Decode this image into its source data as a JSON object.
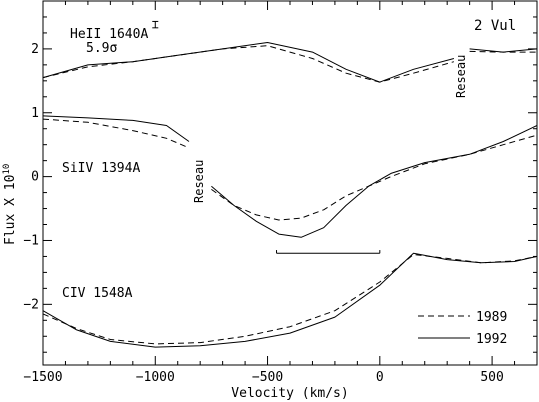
{
  "chart_data": {
    "type": "line",
    "corner_label": "2 Vul",
    "xlabel": "Velocity (km/s)",
    "ylabel_main": "Flux X 10",
    "ylabel_exp": "10",
    "xlim": [
      -1500,
      700
    ],
    "ylim": [
      -2.95,
      2.75
    ],
    "x_ticks": [
      {
        "value": -1500,
        "label": "−1500"
      },
      {
        "value": -1000,
        "label": "−1000"
      },
      {
        "value": -500,
        "label": "−500"
      },
      {
        "value": 0,
        "label": "0"
      },
      {
        "value": 500,
        "label": "500"
      }
    ],
    "y_ticks": [
      {
        "value": 2,
        "label": "2"
      },
      {
        "value": 1,
        "label": "1"
      },
      {
        "value": 0,
        "label": "0"
      },
      {
        "value": -1,
        "label": "−1"
      },
      {
        "value": -2,
        "label": "−2"
      }
    ],
    "legend": [
      {
        "name": "1989",
        "style": "dashed"
      },
      {
        "name": "1992",
        "style": "solid"
      }
    ],
    "annotations": {
      "heii_label": "HeII 1640A",
      "significance": "5.9σ",
      "siiv_label": "SiIV 1394A",
      "civ_label": "CIV 1548A",
      "reseau_1": "Reseau",
      "reseau_2": "Reseau"
    },
    "error_bar": {
      "x": -1000,
      "y": 2.38,
      "half_height": 0.05
    },
    "velocity_bracket": {
      "x_start": -460,
      "x_end": 0,
      "y": -1.2,
      "tick": 0.05
    },
    "panels": [
      {
        "ion": "HeII 1640A",
        "segments": [
          {
            "x": [
              -1500,
              -1300,
              -1100,
              -900,
              -700,
              -500,
              -300,
              -150,
              0,
              150,
              330
            ],
            "series": [
              {
                "name": "1989",
                "style": "dashed",
                "values": [
                  1.55,
                  1.72,
                  1.8,
                  1.9,
                  2.0,
                  2.05,
                  1.85,
                  1.62,
                  1.48,
                  1.62,
                  1.8
                ]
              },
              {
                "name": "1992",
                "style": "solid",
                "values": [
                  1.55,
                  1.75,
                  1.8,
                  1.9,
                  2.0,
                  2.1,
                  1.95,
                  1.68,
                  1.48,
                  1.68,
                  1.85
                ]
              }
            ]
          },
          {
            "x": [
              400,
              550,
              700
            ],
            "series": [
              {
                "name": "1989",
                "style": "dashed",
                "values": [
                  1.96,
                  1.95,
                  1.95
                ]
              },
              {
                "name": "1992",
                "style": "solid",
                "values": [
                  2.0,
                  1.95,
                  2.0
                ]
              }
            ]
          }
        ]
      },
      {
        "ion": "SiIV 1394A",
        "segments": [
          {
            "x": [
              -1500,
              -1300,
              -1100,
              -950,
              -850
            ],
            "series": [
              {
                "name": "1989",
                "style": "dashed",
                "values": [
                  0.9,
                  0.85,
                  0.72,
                  0.6,
                  0.45
                ]
              },
              {
                "name": "1992",
                "style": "solid",
                "values": [
                  0.95,
                  0.92,
                  0.88,
                  0.8,
                  0.55
                ]
              }
            ]
          },
          {
            "x": [
              -750,
              -650,
              -550,
              -450,
              -350,
              -250,
              -150,
              -50,
              50,
              200,
              400,
              550,
              700
            ],
            "series": [
              {
                "name": "1989",
                "style": "dashed",
                "values": [
                  -0.2,
                  -0.45,
                  -0.6,
                  -0.68,
                  -0.65,
                  -0.52,
                  -0.3,
                  -0.15,
                  0.0,
                  0.2,
                  0.35,
                  0.5,
                  0.65
                ]
              },
              {
                "name": "1992",
                "style": "solid",
                "values": [
                  -0.15,
                  -0.45,
                  -0.7,
                  -0.9,
                  -0.95,
                  -0.8,
                  -0.45,
                  -0.15,
                  0.05,
                  0.22,
                  0.35,
                  0.55,
                  0.8
                ]
              }
            ]
          }
        ]
      },
      {
        "ion": "CIV 1548A",
        "segments": [
          {
            "x": [
              -1500,
              -1350,
              -1200,
              -1000,
              -800,
              -600,
              -400,
              -200,
              0,
              150,
              300,
              450,
              600,
              700
            ],
            "series": [
              {
                "name": "1989",
                "style": "dashed",
                "values": [
                  -2.15,
                  -2.38,
                  -2.55,
                  -2.62,
                  -2.6,
                  -2.5,
                  -2.35,
                  -2.1,
                  -1.65,
                  -1.22,
                  -1.28,
                  -1.35,
                  -1.32,
                  -1.25
                ]
              },
              {
                "name": "1992",
                "style": "solid",
                "values": [
                  -2.1,
                  -2.4,
                  -2.58,
                  -2.67,
                  -2.65,
                  -2.58,
                  -2.45,
                  -2.2,
                  -1.7,
                  -1.2,
                  -1.3,
                  -1.35,
                  -1.33,
                  -1.25
                ]
              }
            ]
          }
        ]
      }
    ]
  }
}
